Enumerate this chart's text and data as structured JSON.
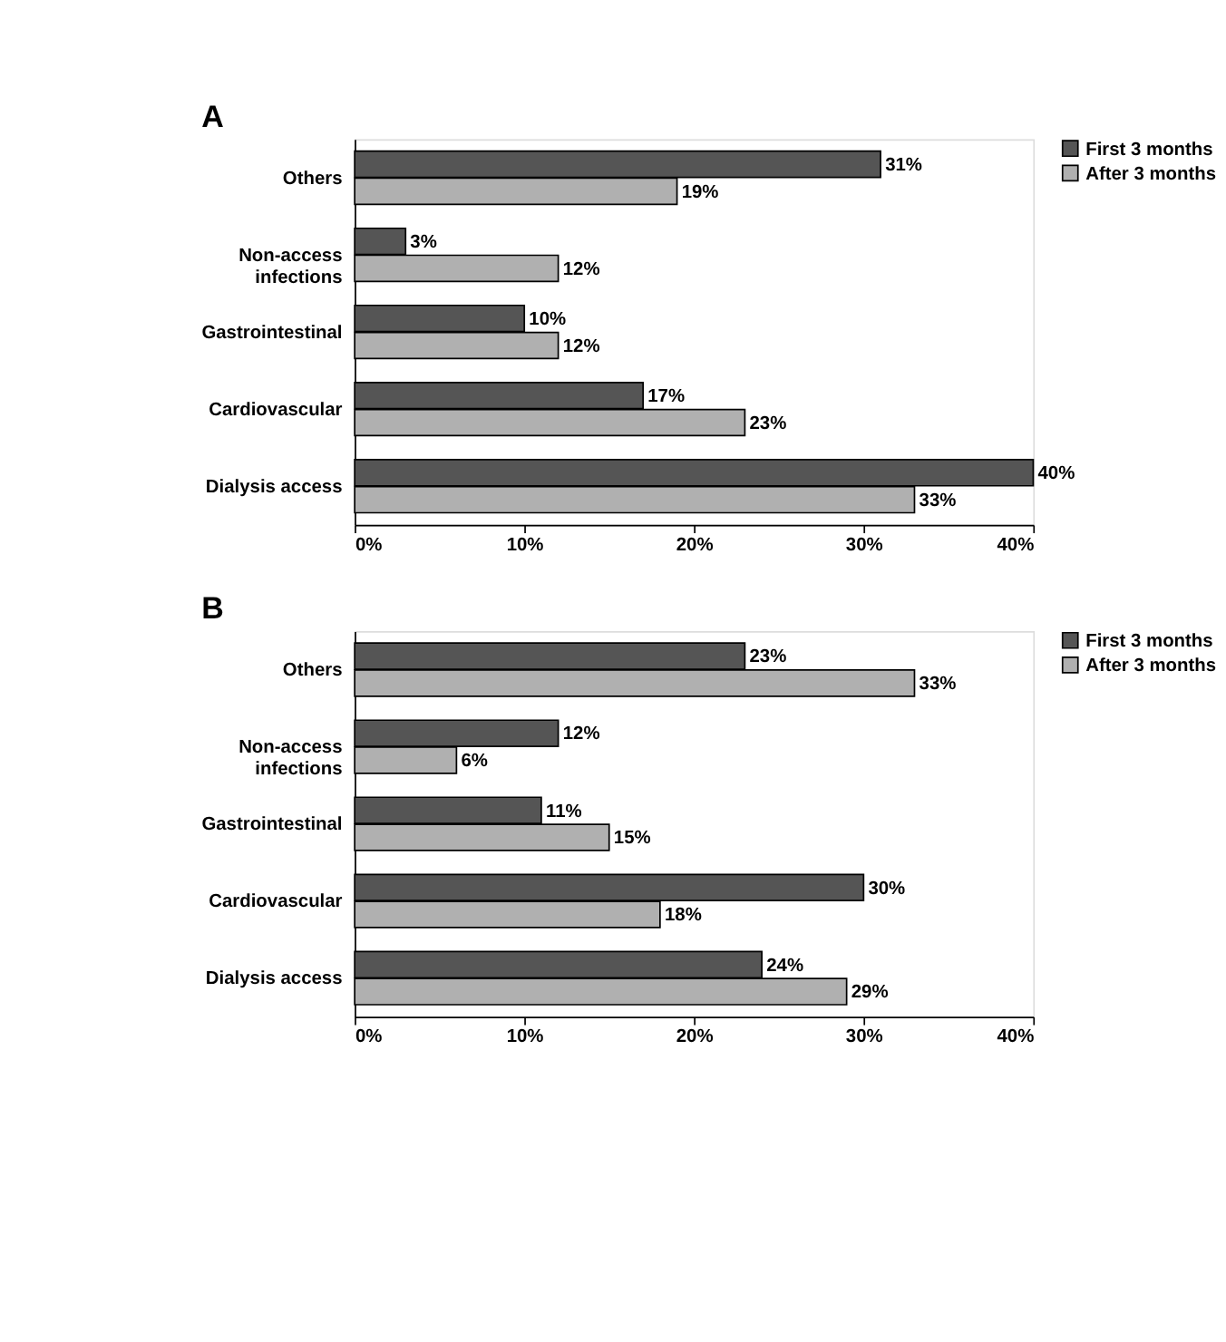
{
  "chart_data": [
    {
      "type": "bar",
      "title": "A",
      "orientation": "horizontal",
      "categories": [
        "Others",
        "Non-access\ninfections",
        "Gastrointestinal",
        "Cardiovascular",
        "Dialysis access"
      ],
      "series": [
        {
          "name": "First 3 months",
          "color": "#555555",
          "values": [
            31,
            3,
            10,
            17,
            40
          ],
          "value_labels": [
            "31%",
            "3%",
            "10%",
            "17%",
            "40%"
          ]
        },
        {
          "name": "After 3 months",
          "color": "#b0b0b0",
          "values": [
            19,
            12,
            12,
            23,
            33
          ],
          "value_labels": [
            "19%",
            "12%",
            "12%",
            "23%",
            "33%"
          ]
        }
      ],
      "xlim": [
        0,
        40
      ],
      "xticks": [
        {
          "value": 0,
          "label": "0%"
        },
        {
          "value": 10,
          "label": "10%"
        },
        {
          "value": 20,
          "label": "20%"
        },
        {
          "value": 30,
          "label": "30%"
        },
        {
          "value": 40,
          "label": "40%"
        }
      ],
      "grid": false,
      "legend": "right"
    },
    {
      "type": "bar",
      "title": "B",
      "orientation": "horizontal",
      "categories": [
        "Others",
        "Non-access\ninfections",
        "Gastrointestinal",
        "Cardiovascular",
        "Dialysis access"
      ],
      "series": [
        {
          "name": "First 3 months",
          "color": "#555555",
          "values": [
            23,
            12,
            11,
            30,
            24
          ],
          "value_labels": [
            "23%",
            "12%",
            "11%",
            "30%",
            "24%"
          ]
        },
        {
          "name": "After 3 months",
          "color": "#b0b0b0",
          "values": [
            33,
            6,
            15,
            18,
            29
          ],
          "value_labels": [
            "33%",
            "6%",
            "15%",
            "18%",
            "29%"
          ]
        }
      ],
      "xlim": [
        0,
        40
      ],
      "xticks": [
        {
          "value": 0,
          "label": "0%"
        },
        {
          "value": 10,
          "label": "10%"
        },
        {
          "value": 20,
          "label": "20%"
        },
        {
          "value": 30,
          "label": "30%"
        },
        {
          "value": 40,
          "label": "40%"
        }
      ],
      "grid": false,
      "legend": "right"
    }
  ]
}
